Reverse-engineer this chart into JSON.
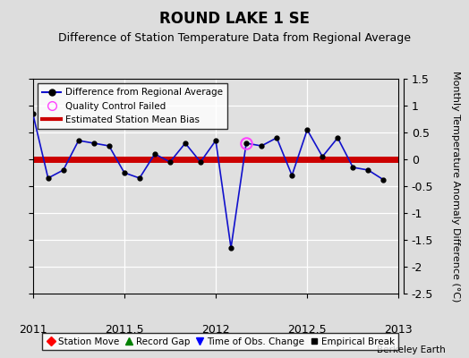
{
  "title": "ROUND LAKE 1 SE",
  "subtitle": "Difference of Station Temperature Data from Regional Average",
  "ylabel": "Monthly Temperature Anomaly Difference (°C)",
  "watermark": "Berkeley Earth",
  "xlim": [
    2011.0,
    2013.0
  ],
  "ylim": [
    -2.5,
    1.5
  ],
  "yticks": [
    -2.5,
    -2.0,
    -1.5,
    -1.0,
    -0.5,
    0.0,
    0.5,
    1.0,
    1.5
  ],
  "xticks": [
    2011,
    2011.5,
    2012,
    2012.5,
    2013
  ],
  "bg_color": "#dddddd",
  "plot_bg_color": "#e0e0e0",
  "grid_color": "#ffffff",
  "y_data": [
    0.85,
    -0.35,
    -0.2,
    0.35,
    0.3,
    0.25,
    -0.25,
    -0.35,
    0.1,
    -0.05,
    0.3,
    -0.05,
    0.35,
    -1.65,
    0.3,
    0.25,
    0.4,
    -0.3,
    0.55,
    0.05,
    0.4,
    -0.15,
    -0.2,
    -0.38
  ],
  "qc_idx": 14,
  "bias_y": 0.0,
  "line_color": "#1111cc",
  "line_width": 1.2,
  "bias_color": "#cc0000",
  "bias_linewidth": 5,
  "tick_fontsize": 9,
  "title_fontsize": 12,
  "subtitle_fontsize": 9
}
